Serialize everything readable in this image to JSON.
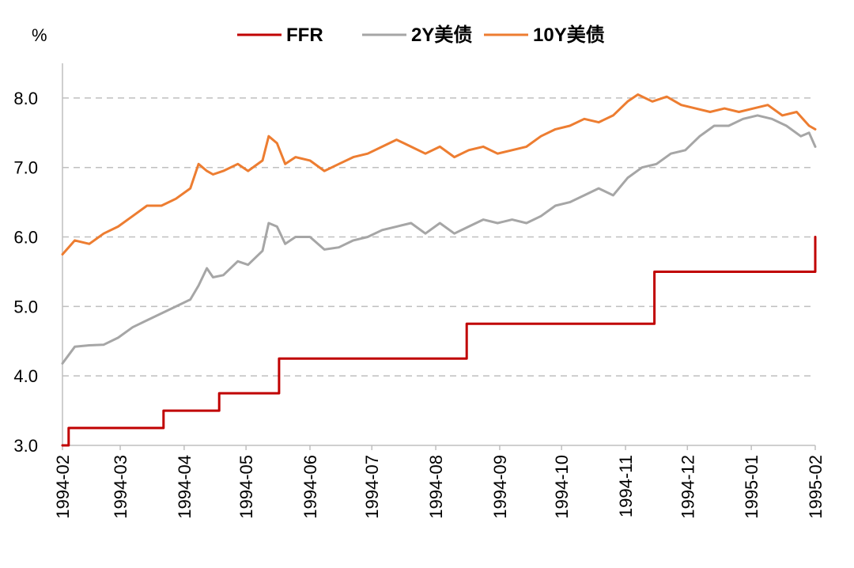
{
  "chart_data": {
    "type": "line",
    "ylabel": "%",
    "ylim": [
      3.0,
      8.5
    ],
    "yticks": [
      "3.0",
      "4.0",
      "5.0",
      "6.0",
      "7.0",
      "8.0"
    ],
    "xlim": [
      "1994-02-01",
      "1995-02-01"
    ],
    "xticks": [
      "1994-02",
      "1994-03",
      "1994-04",
      "1994-05",
      "1994-06",
      "1994-07",
      "1994-08",
      "1994-09",
      "1994-10",
      "1994-11",
      "1994-12",
      "1995-01",
      "1995-02"
    ],
    "grid": "horizontal dashed",
    "legend_position": "top",
    "series": [
      {
        "name": "FFR",
        "color": "#C00000",
        "style": "step",
        "points": [
          [
            "1994-02-01",
            3.0
          ],
          [
            "1994-02-04",
            3.25
          ],
          [
            "1994-03-22",
            3.5
          ],
          [
            "1994-04-18",
            3.75
          ],
          [
            "1994-05-17",
            4.25
          ],
          [
            "1994-08-16",
            4.75
          ],
          [
            "1994-11-15",
            5.5
          ],
          [
            "1995-02-01",
            6.0
          ]
        ]
      },
      {
        "name": "2Y美债",
        "color": "#A6A6A6",
        "points": [
          [
            "1994-02-01",
            4.18
          ],
          [
            "1994-02-04",
            4.3
          ],
          [
            "1994-02-07",
            4.42
          ],
          [
            "1994-02-14",
            4.44
          ],
          [
            "1994-02-21",
            4.45
          ],
          [
            "1994-02-28",
            4.55
          ],
          [
            "1994-03-07",
            4.7
          ],
          [
            "1994-03-14",
            4.8
          ],
          [
            "1994-03-21",
            4.9
          ],
          [
            "1994-03-28",
            5.0
          ],
          [
            "1994-04-04",
            5.1
          ],
          [
            "1994-04-08",
            5.3
          ],
          [
            "1994-04-12",
            5.55
          ],
          [
            "1994-04-15",
            5.42
          ],
          [
            "1994-04-20",
            5.45
          ],
          [
            "1994-04-27",
            5.65
          ],
          [
            "1994-05-02",
            5.6
          ],
          [
            "1994-05-09",
            5.8
          ],
          [
            "1994-05-12",
            6.2
          ],
          [
            "1994-05-16",
            6.15
          ],
          [
            "1994-05-20",
            5.9
          ],
          [
            "1994-05-25",
            6.0
          ],
          [
            "1994-06-01",
            6.0
          ],
          [
            "1994-06-08",
            5.82
          ],
          [
            "1994-06-15",
            5.85
          ],
          [
            "1994-06-22",
            5.95
          ],
          [
            "1994-06-29",
            6.0
          ],
          [
            "1994-07-06",
            6.1
          ],
          [
            "1994-07-13",
            6.15
          ],
          [
            "1994-07-20",
            6.2
          ],
          [
            "1994-07-27",
            6.05
          ],
          [
            "1994-08-03",
            6.2
          ],
          [
            "1994-08-10",
            6.05
          ],
          [
            "1994-08-17",
            6.15
          ],
          [
            "1994-08-24",
            6.25
          ],
          [
            "1994-08-31",
            6.2
          ],
          [
            "1994-09-07",
            6.25
          ],
          [
            "1994-09-14",
            6.2
          ],
          [
            "1994-09-21",
            6.3
          ],
          [
            "1994-09-28",
            6.45
          ],
          [
            "1994-10-05",
            6.5
          ],
          [
            "1994-10-12",
            6.6
          ],
          [
            "1994-10-19",
            6.7
          ],
          [
            "1994-10-26",
            6.6
          ],
          [
            "1994-11-02",
            6.85
          ],
          [
            "1994-11-09",
            7.0
          ],
          [
            "1994-11-16",
            7.05
          ],
          [
            "1994-11-23",
            7.2
          ],
          [
            "1994-11-30",
            7.25
          ],
          [
            "1994-12-07",
            7.45
          ],
          [
            "1994-12-14",
            7.6
          ],
          [
            "1994-12-21",
            7.6
          ],
          [
            "1994-12-28",
            7.7
          ],
          [
            "1995-01-04",
            7.75
          ],
          [
            "1995-01-11",
            7.7
          ],
          [
            "1995-01-18",
            7.6
          ],
          [
            "1995-01-25",
            7.45
          ],
          [
            "1995-01-29",
            7.5
          ],
          [
            "1995-02-01",
            7.3
          ]
        ]
      },
      {
        "name": "10Y美债",
        "color": "#ED7D31",
        "points": [
          [
            "1994-02-01",
            5.75
          ],
          [
            "1994-02-04",
            5.85
          ],
          [
            "1994-02-07",
            5.95
          ],
          [
            "1994-02-14",
            5.9
          ],
          [
            "1994-02-21",
            6.05
          ],
          [
            "1994-02-28",
            6.15
          ],
          [
            "1994-03-07",
            6.3
          ],
          [
            "1994-03-14",
            6.45
          ],
          [
            "1994-03-21",
            6.45
          ],
          [
            "1994-03-28",
            6.55
          ],
          [
            "1994-04-04",
            6.7
          ],
          [
            "1994-04-08",
            7.05
          ],
          [
            "1994-04-12",
            6.95
          ],
          [
            "1994-04-15",
            6.9
          ],
          [
            "1994-04-20",
            6.95
          ],
          [
            "1994-04-27",
            7.05
          ],
          [
            "1994-05-02",
            6.95
          ],
          [
            "1994-05-09",
            7.1
          ],
          [
            "1994-05-12",
            7.45
          ],
          [
            "1994-05-16",
            7.35
          ],
          [
            "1994-05-20",
            7.05
          ],
          [
            "1994-05-25",
            7.15
          ],
          [
            "1994-06-01",
            7.1
          ],
          [
            "1994-06-08",
            6.95
          ],
          [
            "1994-06-15",
            7.05
          ],
          [
            "1994-06-22",
            7.15
          ],
          [
            "1994-06-29",
            7.2
          ],
          [
            "1994-07-06",
            7.3
          ],
          [
            "1994-07-13",
            7.4
          ],
          [
            "1994-07-20",
            7.3
          ],
          [
            "1994-07-27",
            7.2
          ],
          [
            "1994-08-03",
            7.3
          ],
          [
            "1994-08-10",
            7.15
          ],
          [
            "1994-08-17",
            7.25
          ],
          [
            "1994-08-24",
            7.3
          ],
          [
            "1994-08-31",
            7.2
          ],
          [
            "1994-09-07",
            7.25
          ],
          [
            "1994-09-14",
            7.3
          ],
          [
            "1994-09-21",
            7.45
          ],
          [
            "1994-09-28",
            7.55
          ],
          [
            "1994-10-05",
            7.6
          ],
          [
            "1994-10-12",
            7.7
          ],
          [
            "1994-10-19",
            7.65
          ],
          [
            "1994-10-26",
            7.75
          ],
          [
            "1994-11-02",
            7.95
          ],
          [
            "1994-11-07",
            8.05
          ],
          [
            "1994-11-14",
            7.95
          ],
          [
            "1994-11-21",
            8.02
          ],
          [
            "1994-11-28",
            7.9
          ],
          [
            "1994-12-05",
            7.85
          ],
          [
            "1994-12-12",
            7.8
          ],
          [
            "1994-12-19",
            7.85
          ],
          [
            "1994-12-26",
            7.8
          ],
          [
            "1995-01-02",
            7.85
          ],
          [
            "1995-01-09",
            7.9
          ],
          [
            "1995-01-16",
            7.75
          ],
          [
            "1995-01-23",
            7.8
          ],
          [
            "1995-01-29",
            7.6
          ],
          [
            "1995-02-01",
            7.55
          ]
        ]
      }
    ]
  }
}
